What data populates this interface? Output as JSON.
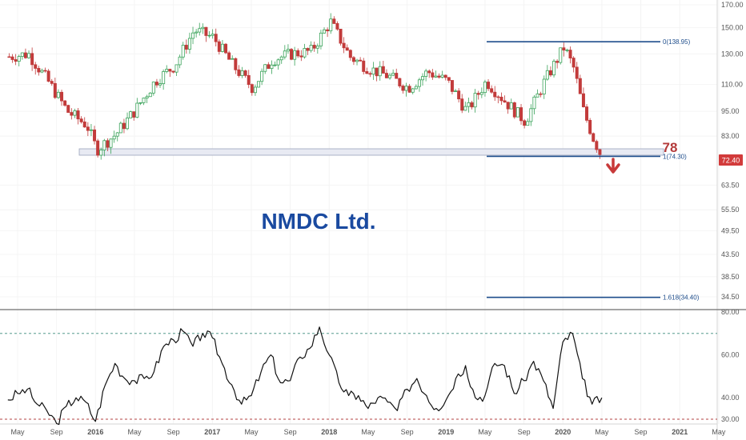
{
  "chart_data": [
    {
      "type": "candlestick",
      "title": "NMDC Ltd.",
      "y_scale": "log",
      "ylim": [
        30,
        172
      ],
      "y_ticks": [
        "170.00",
        "150.00",
        "130.00",
        "110.00",
        "95.00",
        "83.00",
        "72.40",
        "63.50",
        "55.50",
        "49.50",
        "43.50",
        "38.50",
        "34.50"
      ],
      "last_price": "72.40",
      "support_zone": [
        74.3,
        78
      ],
      "support_level_label": "78",
      "fib_levels": [
        {
          "label": "0(138.95)",
          "value": 138.95
        },
        {
          "label": "1(74.30)",
          "value": 74.3
        },
        {
          "label": "1.618(34.40)",
          "value": 34.4
        }
      ],
      "outlook": "down",
      "x_labels": [
        "May",
        "Sep",
        "2016",
        "May",
        "Sep",
        "2017",
        "May",
        "Sep",
        "2018",
        "May",
        "Sep",
        "2019",
        "May",
        "Sep",
        "2020",
        "May",
        "Sep",
        "2021",
        "May"
      ],
      "close_path": {
        "dates": [
          "2015-04",
          "2015-06",
          "2015-08",
          "2015-10",
          "2015-12",
          "2016-01",
          "2016-03",
          "2016-05",
          "2016-07",
          "2016-09",
          "2016-11",
          "2017-01",
          "2017-03",
          "2017-05",
          "2017-07",
          "2017-09",
          "2017-11",
          "2018-01",
          "2018-03",
          "2018-05",
          "2018-07",
          "2018-09",
          "2018-11",
          "2019-01",
          "2019-03",
          "2019-05",
          "2019-07",
          "2019-09",
          "2019-11",
          "2020-01",
          "2020-02",
          "2020-03",
          "2020-04",
          "2020-05"
        ],
        "close": [
          128,
          130,
          112,
          95,
          88,
          77,
          84,
          96,
          112,
          122,
          148,
          142,
          122,
          108,
          126,
          130,
          132,
          155,
          128,
          120,
          115,
          108,
          118,
          112,
          95,
          112,
          100,
          90,
          112,
          135,
          120,
          95,
          82,
          73
        ]
      },
      "rsi": {
        "ylim": [
          30,
          80
        ],
        "y_ticks": [
          "80.00",
          "60.00",
          "40.00",
          "30.00"
        ],
        "levels": [
          70,
          30
        ],
        "dates": [
          "2015-04",
          "2015-05",
          "2015-06",
          "2015-07",
          "2015-08",
          "2015-09",
          "2015-10",
          "2015-11",
          "2015-12",
          "2016-01",
          "2016-02",
          "2016-03",
          "2016-04",
          "2016-05",
          "2016-06",
          "2016-07",
          "2016-08",
          "2016-09",
          "2016-10",
          "2016-11",
          "2016-12",
          "2017-01",
          "2017-02",
          "2017-03",
          "2017-04",
          "2017-05",
          "2017-06",
          "2017-07",
          "2017-08",
          "2017-09",
          "2017-10",
          "2017-11",
          "2017-12",
          "2018-01",
          "2018-02",
          "2018-03",
          "2018-04",
          "2018-05",
          "2018-06",
          "2018-07",
          "2018-08",
          "2018-09",
          "2018-10",
          "2018-11",
          "2018-12",
          "2019-01",
          "2019-02",
          "2019-03",
          "2019-04",
          "2019-05",
          "2019-06",
          "2019-07",
          "2019-08",
          "2019-09",
          "2019-10",
          "2019-11",
          "2019-12",
          "2020-01",
          "2020-02",
          "2020-03",
          "2020-04",
          "2020-05"
        ],
        "values": [
          39,
          42,
          44,
          37,
          34,
          28,
          36,
          40,
          38,
          29,
          46,
          56,
          49,
          48,
          49,
          52,
          64,
          67,
          71,
          64,
          70,
          68,
          56,
          46,
          37,
          41,
          52,
          60,
          47,
          48,
          59,
          63,
          73,
          60,
          47,
          41,
          41,
          35,
          40,
          38,
          34,
          44,
          49,
          41,
          35,
          39,
          49,
          55,
          40,
          41,
          56,
          55,
          42,
          48,
          57,
          48,
          35,
          66,
          70,
          49,
          37,
          40
        ]
      }
    }
  ]
}
